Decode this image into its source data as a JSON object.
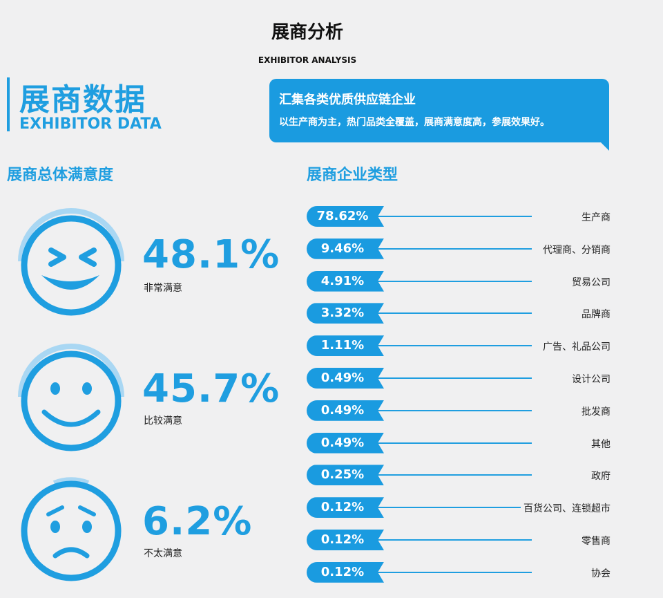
{
  "header": {
    "title": "展商分析",
    "subtitle": "EXHIBITOR ANALYSIS"
  },
  "section": {
    "title": "展商数据",
    "title_en": "EXHIBITOR DATA"
  },
  "callout": {
    "heading": "汇集各类优质供应链企业",
    "text": "以生产商为主，热门品类全覆盖，展商满意度高，参展效果好。"
  },
  "satisfaction": {
    "heading": "展商总体满意度",
    "items": [
      {
        "value": "48.1%",
        "label": "非常满意",
        "face": "very-happy-face-icon"
      },
      {
        "value": "45.7%",
        "label": "比较满意",
        "face": "smiling-face-icon"
      },
      {
        "value": "6.2%",
        "label": "不太满意",
        "face": "worried-face-icon"
      }
    ]
  },
  "types": {
    "heading": "展商企业类型"
  },
  "colors": {
    "accent": "#1f9ee0",
    "background": "#f0f0f1"
  },
  "chart_data": [
    {
      "type": "pie",
      "title": "展商总体满意度",
      "categories": [
        "非常满意",
        "比较满意",
        "不太满意"
      ],
      "values": [
        48.1,
        45.7,
        6.2
      ],
      "unit": "%"
    },
    {
      "type": "bar",
      "title": "展商企业类型",
      "categories": [
        "生产商",
        "代理商、分销商",
        "贸易公司",
        "品牌商",
        "广告、礼品公司",
        "设计公司",
        "批发商",
        "其他",
        "政府",
        "百货公司、连锁超市",
        "零售商",
        "协会"
      ],
      "values": [
        78.62,
        9.46,
        4.91,
        3.32,
        1.11,
        0.49,
        0.49,
        0.49,
        0.25,
        0.12,
        0.12,
        0.12
      ],
      "labels": [
        "78.62%",
        "9.46%",
        "4.91%",
        "3.32%",
        "1.11%",
        "0.49%",
        "0.49%",
        "0.49%",
        "0.25%",
        "0.12%",
        "0.12%",
        "0.12%"
      ],
      "unit": "%"
    }
  ]
}
